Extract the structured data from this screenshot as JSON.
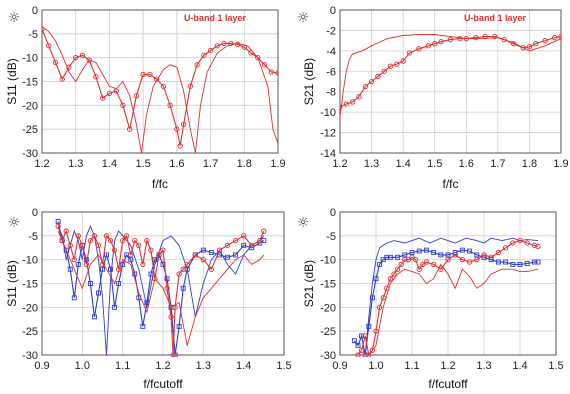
{
  "colors": {
    "red": "#e03030",
    "blue": "#2a3fd0",
    "grid": "#cfcfcf",
    "axis": "#555555"
  },
  "icon": "sun-icon",
  "chart_data": [
    {
      "type": "line",
      "annotation": "U-band 1 layer",
      "xlabel": "f/fc",
      "ylabel": "S11 (dB)",
      "xlim": [
        1.2,
        1.9
      ],
      "ylim": [
        -30,
        0
      ],
      "xticks": [
        "1.2",
        "1.3",
        "1.4",
        "1.5",
        "1.6",
        "1.7",
        "1.8",
        "1.9"
      ],
      "yticks": [
        "0",
        "-5",
        "-10",
        "-15",
        "-20",
        "-25",
        "-30"
      ],
      "grid": true,
      "series": [
        {
          "color": "red",
          "marker": "none",
          "x": [
            1.2,
            1.22,
            1.24,
            1.26,
            1.28,
            1.3,
            1.32,
            1.34,
            1.36,
            1.38,
            1.4,
            1.42,
            1.44,
            1.46,
            1.48,
            1.495,
            1.51,
            1.53,
            1.56,
            1.58,
            1.6,
            1.62,
            1.64,
            1.655,
            1.67,
            1.69,
            1.72,
            1.75,
            1.78,
            1.81,
            1.84,
            1.87,
            1.885,
            1.9
          ],
          "y": [
            -3.5,
            -4.5,
            -6.5,
            -9.5,
            -13,
            -15,
            -12.5,
            -10.5,
            -11,
            -13.5,
            -16,
            -16.5,
            -15,
            -18,
            -24,
            -30,
            -22,
            -16,
            -12.5,
            -11.5,
            -12,
            -17,
            -25,
            -30,
            -20,
            -13,
            -9,
            -7.5,
            -7,
            -7.5,
            -10,
            -16,
            -25,
            -28
          ]
        },
        {
          "color": "red",
          "marker": "circle",
          "x": [
            1.2,
            1.22,
            1.24,
            1.26,
            1.28,
            1.3,
            1.32,
            1.34,
            1.36,
            1.38,
            1.4,
            1.42,
            1.44,
            1.46,
            1.48,
            1.5,
            1.52,
            1.54,
            1.56,
            1.58,
            1.6,
            1.61,
            1.62,
            1.64,
            1.66,
            1.68,
            1.7,
            1.72,
            1.74,
            1.76,
            1.78,
            1.8,
            1.82,
            1.84,
            1.86,
            1.88,
            1.9
          ],
          "y": [
            -4,
            -7.5,
            -11,
            -14.5,
            -12,
            -10,
            -9.5,
            -10.5,
            -14,
            -18.5,
            -17.5,
            -17,
            -20,
            -25,
            -18,
            -13.5,
            -13.5,
            -14.5,
            -16,
            -20,
            -25,
            -28.5,
            -24,
            -16,
            -11.5,
            -9.5,
            -8.5,
            -7.5,
            -7,
            -7,
            -7.2,
            -7.8,
            -9,
            -10,
            -11.5,
            -13,
            -13.2
          ]
        }
      ]
    },
    {
      "type": "line",
      "annotation": "U-band 1 layer",
      "xlabel": "f/fc",
      "ylabel": "S21 (dB)",
      "xlim": [
        1.2,
        1.9
      ],
      "ylim": [
        -14,
        0
      ],
      "xticks": [
        "1.2",
        "1.3",
        "1.4",
        "1.5",
        "1.6",
        "1.7",
        "1.8",
        "1.9"
      ],
      "yticks": [
        "0",
        "-2",
        "-4",
        "-6",
        "-8",
        "-10",
        "-12",
        "-14"
      ],
      "grid": true,
      "series": [
        {
          "color": "red",
          "marker": "none",
          "x": [
            1.2,
            1.21,
            1.22,
            1.23,
            1.24,
            1.25,
            1.27,
            1.3,
            1.35,
            1.4,
            1.45,
            1.5,
            1.55,
            1.6,
            1.65,
            1.7,
            1.75,
            1.8,
            1.85,
            1.9
          ],
          "y": [
            -10.5,
            -8,
            -6,
            -4.8,
            -4.3,
            -4.2,
            -4,
            -3.5,
            -2.8,
            -2.5,
            -2.4,
            -2.4,
            -2.6,
            -2.8,
            -2.8,
            -2.7,
            -3.2,
            -4,
            -3.5,
            -2.8
          ]
        },
        {
          "color": "red",
          "marker": "circle",
          "x": [
            1.2,
            1.22,
            1.24,
            1.26,
            1.28,
            1.3,
            1.32,
            1.34,
            1.36,
            1.38,
            1.4,
            1.42,
            1.45,
            1.48,
            1.5,
            1.52,
            1.55,
            1.58,
            1.6,
            1.63,
            1.66,
            1.69,
            1.72,
            1.75,
            1.78,
            1.8,
            1.82,
            1.85,
            1.88,
            1.9
          ],
          "y": [
            -9.5,
            -9.2,
            -9,
            -8.5,
            -7.5,
            -7,
            -6.5,
            -6,
            -5.5,
            -5.3,
            -5,
            -4.2,
            -3.8,
            -3.5,
            -3.3,
            -3.1,
            -2.9,
            -2.8,
            -2.8,
            -2.7,
            -2.6,
            -2.6,
            -2.9,
            -3.3,
            -3.7,
            -3.6,
            -3.3,
            -3,
            -2.7,
            -2.6
          ]
        }
      ]
    },
    {
      "type": "line",
      "xlabel": "f/fcutoff",
      "ylabel": "S11 (dB)",
      "xlim": [
        0.9,
        1.5
      ],
      "ylim": [
        -30,
        0
      ],
      "xticks": [
        "0.9",
        "1.0",
        "1.1",
        "1.2",
        "1.3",
        "1.4",
        "1.5"
      ],
      "yticks": [
        "0",
        "-5",
        "-10",
        "-15",
        "-20",
        "-25",
        "-30"
      ],
      "grid": true,
      "series": [
        {
          "color": "blue",
          "marker": "none",
          "x": [
            0.94,
            0.95,
            0.96,
            0.97,
            0.98,
            0.99,
            1.0,
            1.01,
            1.02,
            1.03,
            1.04,
            1.05,
            1.06,
            1.07,
            1.08,
            1.09,
            1.1,
            1.12,
            1.14,
            1.16,
            1.18,
            1.2,
            1.22,
            1.24,
            1.26,
            1.28,
            1.3,
            1.32,
            1.34,
            1.36,
            1.38,
            1.4,
            1.42,
            1.44,
            1.45
          ],
          "y": [
            -3,
            -5,
            -10,
            -7,
            -4,
            -6,
            -10,
            -5,
            -3,
            -5,
            -10,
            -18,
            -30,
            -14,
            -6,
            -4,
            -5,
            -7,
            -12,
            -20,
            -11,
            -6,
            -5,
            -7,
            -12,
            -22,
            -15,
            -10,
            -8,
            -11,
            -13,
            -9,
            -7,
            -6,
            -5
          ]
        },
        {
          "color": "blue",
          "marker": "square",
          "x": [
            0.94,
            0.95,
            0.96,
            0.97,
            0.98,
            0.99,
            1.0,
            1.01,
            1.02,
            1.03,
            1.04,
            1.05,
            1.06,
            1.07,
            1.08,
            1.09,
            1.1,
            1.11,
            1.12,
            1.13,
            1.14,
            1.15,
            1.16,
            1.17,
            1.18,
            1.19,
            1.2,
            1.21,
            1.22,
            1.23,
            1.24,
            1.25,
            1.26,
            1.28,
            1.3,
            1.32,
            1.34,
            1.36,
            1.38,
            1.4,
            1.42,
            1.44,
            1.45
          ],
          "y": [
            -2,
            -6,
            -8,
            -12,
            -18,
            -11,
            -7,
            -10,
            -15,
            -22,
            -17,
            -12,
            -9,
            -12,
            -20,
            -15,
            -11,
            -9,
            -10,
            -13,
            -18,
            -24,
            -19,
            -13,
            -10,
            -9,
            -11,
            -14,
            -20,
            -30,
            -24,
            -16,
            -12,
            -9,
            -8,
            -8.5,
            -9,
            -9.5,
            -9,
            -7,
            -7.5,
            -6.5,
            -6
          ]
        },
        {
          "color": "red",
          "marker": "none",
          "x": [
            0.94,
            0.96,
            0.98,
            1.0,
            1.02,
            1.04,
            1.06,
            1.08,
            1.1,
            1.12,
            1.14,
            1.16,
            1.18,
            1.2,
            1.22,
            1.24,
            1.26,
            1.28,
            1.3,
            1.32,
            1.34,
            1.36,
            1.38,
            1.4,
            1.42,
            1.44,
            1.45
          ],
          "y": [
            -4,
            -8,
            -12,
            -16,
            -11,
            -9,
            -12,
            -15,
            -10,
            -11,
            -17,
            -21,
            -14,
            -16,
            -20,
            -19,
            -28,
            -22,
            -18,
            -16,
            -14,
            -12,
            -10,
            -9,
            -11,
            -10,
            -9
          ]
        },
        {
          "color": "red",
          "marker": "circle",
          "x": [
            0.94,
            0.95,
            0.96,
            0.97,
            0.98,
            0.99,
            1.0,
            1.01,
            1.02,
            1.03,
            1.04,
            1.05,
            1.06,
            1.07,
            1.08,
            1.09,
            1.1,
            1.11,
            1.12,
            1.13,
            1.14,
            1.15,
            1.16,
            1.17,
            1.18,
            1.19,
            1.2,
            1.21,
            1.22,
            1.225,
            1.23,
            1.24,
            1.25,
            1.26,
            1.28,
            1.3,
            1.32,
            1.34,
            1.36,
            1.38,
            1.4,
            1.42,
            1.44,
            1.45
          ],
          "y": [
            -3,
            -6,
            -4,
            -7,
            -10,
            -5,
            -7,
            -11,
            -6,
            -5,
            -7,
            -11,
            -5,
            -6,
            -8,
            -12,
            -6,
            -5,
            -9,
            -6,
            -7,
            -11,
            -6,
            -8,
            -14,
            -9,
            -8,
            -16,
            -22,
            -30,
            -20,
            -13,
            -12,
            -11,
            -9,
            -10,
            -12,
            -8,
            -7,
            -6,
            -5,
            -7,
            -6,
            -4
          ]
        }
      ]
    },
    {
      "type": "line",
      "xlabel": "f/fcutoff",
      "ylabel": "S21 (dB)",
      "xlim": [
        0.9,
        1.5
      ],
      "ylim": [
        -30,
        0
      ],
      "xticks": [
        "0.9",
        "1.0",
        "1.1",
        "1.2",
        "1.3",
        "1.4",
        "1.5"
      ],
      "yticks": [
        "0",
        "-5",
        "-10",
        "-15",
        "-20",
        "-25",
        "-30"
      ],
      "grid": true,
      "series": [
        {
          "color": "blue",
          "marker": "none",
          "x": [
            0.97,
            0.98,
            0.99,
            1.0,
            1.01,
            1.02,
            1.03,
            1.05,
            1.08,
            1.1,
            1.12,
            1.15,
            1.18,
            1.2,
            1.22,
            1.25,
            1.28,
            1.3,
            1.32,
            1.35,
            1.38,
            1.4,
            1.42,
            1.45
          ],
          "y": [
            -30,
            -22,
            -15,
            -10,
            -7.5,
            -7,
            -6.5,
            -6,
            -6.5,
            -6,
            -5.5,
            -6.5,
            -5.5,
            -6,
            -6.5,
            -5.5,
            -6,
            -6.5,
            -5.5,
            -6,
            -5.5,
            -6,
            -5.8,
            -6
          ]
        },
        {
          "color": "blue",
          "marker": "square",
          "x": [
            0.94,
            0.95,
            0.96,
            0.97,
            0.98,
            0.99,
            1.0,
            1.01,
            1.02,
            1.03,
            1.04,
            1.06,
            1.08,
            1.1,
            1.12,
            1.14,
            1.16,
            1.18,
            1.2,
            1.22,
            1.24,
            1.26,
            1.28,
            1.3,
            1.32,
            1.34,
            1.36,
            1.38,
            1.4,
            1.42,
            1.44,
            1.45
          ],
          "y": [
            -27,
            -28,
            -26,
            -30,
            -24,
            -18,
            -14,
            -11,
            -10,
            -9.5,
            -9.5,
            -9.5,
            -9,
            -8.5,
            -8.2,
            -8,
            -8.5,
            -9,
            -9,
            -8.5,
            -8,
            -8.2,
            -9,
            -9.5,
            -10,
            -10.5,
            -10.5,
            -11,
            -11,
            -10.8,
            -10.5,
            -10.5
          ]
        },
        {
          "color": "red",
          "marker": "none",
          "x": [
            0.96,
            0.98,
            1.0,
            1.02,
            1.04,
            1.06,
            1.08,
            1.1,
            1.12,
            1.14,
            1.16,
            1.18,
            1.2,
            1.22,
            1.24,
            1.26,
            1.28,
            1.3,
            1.32,
            1.35,
            1.38,
            1.4,
            1.42,
            1.45
          ],
          "y": [
            -30,
            -30,
            -28,
            -20,
            -15,
            -13,
            -12,
            -12.5,
            -13,
            -15,
            -14,
            -11,
            -13,
            -16,
            -12,
            -13.5,
            -16,
            -15,
            -13,
            -12,
            -12,
            -12.5,
            -12.5,
            -12
          ]
        },
        {
          "color": "red",
          "marker": "circle",
          "x": [
            0.95,
            0.96,
            0.97,
            0.98,
            0.99,
            1.0,
            1.01,
            1.02,
            1.03,
            1.04,
            1.05,
            1.06,
            1.07,
            1.08,
            1.09,
            1.1,
            1.11,
            1.12,
            1.13,
            1.14,
            1.16,
            1.18,
            1.2,
            1.22,
            1.24,
            1.26,
            1.28,
            1.3,
            1.32,
            1.34,
            1.36,
            1.38,
            1.4,
            1.42,
            1.44,
            1.45
          ],
          "y": [
            -30,
            -29,
            -26,
            -30,
            -29,
            -25,
            -20,
            -18,
            -16,
            -14,
            -13,
            -12,
            -11,
            -10,
            -10,
            -9.5,
            -10,
            -12,
            -11,
            -10.5,
            -11,
            -12,
            -10,
            -9,
            -10,
            -10.5,
            -10,
            -9,
            -9.5,
            -8.5,
            -7.5,
            -6.5,
            -6,
            -6.5,
            -7,
            -7.2
          ]
        }
      ]
    }
  ]
}
